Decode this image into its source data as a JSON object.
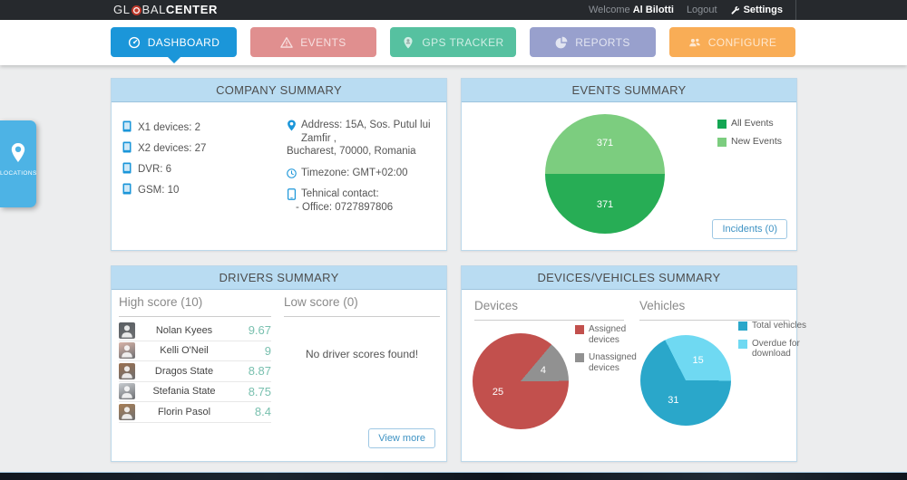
{
  "topbar": {
    "logo": {
      "part1": "GL",
      "part2": "BAL",
      "part3": "CENTER"
    },
    "welcome_prefix": "Welcome",
    "user_name": "Al Bilotti",
    "logout_label": "Logout",
    "settings_label": "Settings"
  },
  "nav": {
    "tabs": [
      {
        "label": "DASHBOARD",
        "icon": "gauge-icon",
        "color": "#1b96d9",
        "active": true
      },
      {
        "label": "EVENTS",
        "icon": "warning-icon",
        "color": "#e08f8f",
        "active": false
      },
      {
        "label": "GPS TRACKER",
        "icon": "person-pin-icon",
        "color": "#56c1a0",
        "active": false
      },
      {
        "label": "REPORTS",
        "icon": "pie-icon",
        "color": "#98a0cd",
        "active": false
      },
      {
        "label": "CONFIGURE",
        "icon": "users-icon",
        "color": "#f9ad56",
        "active": false
      }
    ]
  },
  "locations_tab": {
    "label": "LOCATIONS"
  },
  "company": {
    "title": "COMPANY SUMMARY",
    "device_counts": [
      "X1 devices: 2",
      "X2 devices: 27",
      "DVR: 6",
      "GSM: 10"
    ],
    "address_line1": "Address: 15A, Sos. Putul lui Zamfir ,",
    "address_line2": "Bucharest, 70000, Romania",
    "timezone": "Timezone: GMT+02:00",
    "contact_title": "Tehnical contact:",
    "contact_office": "- Office: 0727897806"
  },
  "events": {
    "title": "EVENTS SUMMARY",
    "incidents_button_label": "Incidents (0)"
  },
  "drivers": {
    "title": "DRIVERS SUMMARY",
    "high_score_header": "High score (10)",
    "low_score_header": "Low score (0)",
    "no_scores_text": "No driver scores found!",
    "view_more_label": "View more",
    "high_scores": [
      {
        "name": "Nolan Kyees",
        "score": "9.67",
        "avatar_color": "#5a5f63"
      },
      {
        "name": "Kelli O'Neil",
        "score": "9",
        "avatar_color": "#d8b4a8"
      },
      {
        "name": "Dragos State",
        "score": "8.87",
        "avatar_color": "#9a6f4e"
      },
      {
        "name": "Stefania State",
        "score": "8.75",
        "avatar_color": "#c9cdd1"
      },
      {
        "name": "Florin Pasol",
        "score": "8.4",
        "avatar_color": "#a87e55"
      }
    ]
  },
  "devices_vehicles": {
    "title": "DEVICES/VEHICLES SUMMARY",
    "devices_header": "Devices",
    "vehicles_header": "Vehicles"
  },
  "accent_colors": {
    "active_tab_blue": "#1b96d9",
    "panel_header_blue": "#b9dcf2",
    "locations_blue": "#4db3e5"
  },
  "chart_data": [
    {
      "id": "events_pie",
      "type": "pie",
      "title": "Events Summary",
      "slices": [
        {
          "label": "New Events",
          "value": 371,
          "color": "#7ccd7f"
        },
        {
          "label": "All Events",
          "value": 371,
          "color": "#27ad55"
        }
      ],
      "start_angle": 270,
      "data_labels": "values shown in white inside slices",
      "legend": [
        {
          "label": "All Events",
          "color": "#14a653"
        },
        {
          "label": "New Events",
          "color": "#7ccd7f"
        }
      ],
      "legend_position": "top-right"
    },
    {
      "id": "devices_pie",
      "type": "pie",
      "title": "Devices",
      "slices": [
        {
          "label": "Unassigned devices",
          "value": 4,
          "color": "#919191"
        },
        {
          "label": "Assigned devices",
          "value": 25,
          "color": "#c2504d"
        }
      ],
      "start_angle": 40,
      "legend": [
        {
          "label": "Assigned devices",
          "color": "#c2504d"
        },
        {
          "label": "Unassigned devices",
          "color": "#919191"
        }
      ],
      "legend_position": "right"
    },
    {
      "id": "vehicles_pie",
      "type": "pie",
      "title": "Vehicles",
      "slices": [
        {
          "label": "Overdue for download",
          "value": 15,
          "color": "#6fd9f2"
        },
        {
          "label": "Total vehicles",
          "value": 31,
          "color": "#2aa7ca"
        }
      ],
      "start_angle": 333,
      "legend": [
        {
          "label": "Total vehicles",
          "color": "#2aa7ca"
        },
        {
          "label": "Overdue for download",
          "color": "#6fd9f2"
        }
      ],
      "legend_position": "right"
    }
  ]
}
